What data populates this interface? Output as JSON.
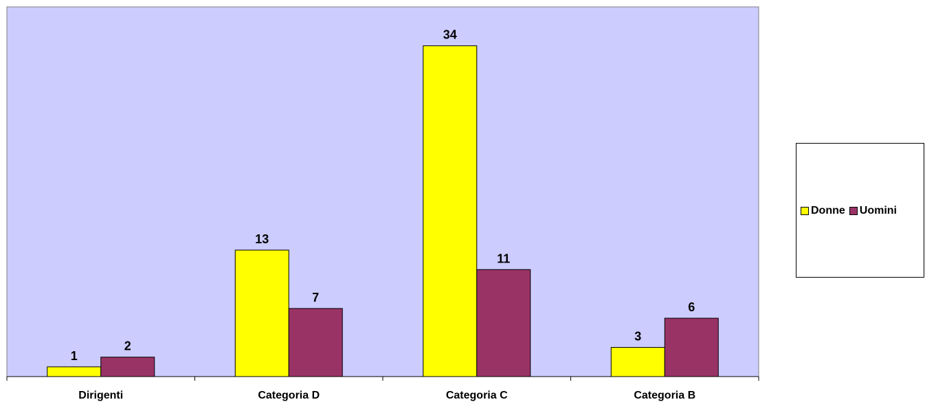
{
  "chart_data": {
    "type": "bar",
    "categories": [
      "Dirigenti",
      "Categoria D",
      "Categoria C",
      "Categoria B"
    ],
    "series": [
      {
        "name": "Donne",
        "values": [
          1,
          13,
          34,
          3
        ],
        "color": "#FFFF00"
      },
      {
        "name": "Uomini",
        "values": [
          2,
          7,
          11,
          6
        ],
        "color": "#993366"
      }
    ],
    "title": "",
    "xlabel": "",
    "ylabel": "",
    "ylim": [
      0,
      38
    ],
    "grid": false,
    "legend_position": "right",
    "plot_background": "#CCCCFF"
  }
}
